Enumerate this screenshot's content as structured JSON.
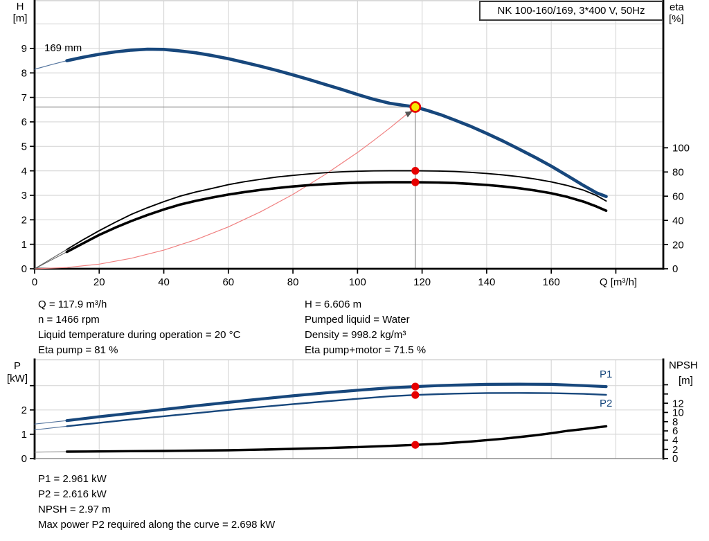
{
  "header": {
    "title": "NK 100-160/169, 3*400 V, 50Hz"
  },
  "top_chart": {
    "left_axis": {
      "name": "H",
      "unit": "[m]"
    },
    "right_axis": {
      "name": "eta",
      "unit": "[%]"
    },
    "impeller_label": "169 mm"
  },
  "bottom_chart": {
    "left_axis": {
      "name": "P",
      "unit": "[kW]"
    },
    "right_axis": {
      "name": "NPSH",
      "unit": "[m]"
    },
    "p1_label": "P1",
    "p2_label": "P2"
  },
  "info_top": {
    "left": [
      "Q = 117.9 m³/h",
      "n = 1466 rpm",
      "Liquid temperature during operation = 20 °C",
      "Eta pump = 81 %"
    ],
    "right": [
      "H = 6.606 m",
      "Pumped liquid = Water",
      "Density = 998.2 kg/m³",
      "Eta pump+motor = 71.5 %"
    ]
  },
  "info_bottom": [
    "P1 = 2.961 kW",
    "P2 = 2.616 kW",
    "NPSH = 2.97 m",
    "Max power P2 required along the curve = 2.698 kW"
  ],
  "colors": {
    "curve_blue": "#17477c",
    "thin_blue": "#53749e",
    "curve_black": "#000000",
    "thin_gray": "#666666",
    "marker_red": "#e60000",
    "duty_yellow": "#f6e700",
    "system_curve_red": "#f08080",
    "crosshair_gray": "#8a8a8a",
    "grid": "#d8d8d8",
    "border_gray": "#c4c4c4"
  },
  "chart_data": [
    {
      "type": "line",
      "title": "NK 100-160/169, 3*400 V, 50Hz",
      "xlabel": "Q [m³/h]",
      "xlim": [
        0,
        194.7
      ],
      "x_ticks": [
        0,
        20,
        40,
        60,
        80,
        100,
        120,
        140,
        160,
        180
      ],
      "x_tick_labels": [
        "0",
        "20",
        "40",
        "60",
        "80",
        "100",
        "120",
        "140",
        "160"
      ],
      "left_axis": {
        "label": "H [m]",
        "lim": [
          0,
          10.95
        ],
        "ticks": [
          0,
          1,
          2,
          3,
          4,
          5,
          6,
          7,
          8,
          9
        ],
        "gridlines": [
          1,
          2,
          3,
          4,
          5,
          6,
          7,
          8,
          9,
          10
        ]
      },
      "right_axis": {
        "label": "eta [%]",
        "lim": [
          0,
          221.6
        ],
        "ticks": [
          0,
          20,
          40,
          60,
          80,
          100
        ],
        "extra_ticks": []
      },
      "series": [
        {
          "name": "System curve",
          "axis": "left",
          "color": "#f08080",
          "width": 1.2,
          "points": [
            [
              0,
              0
            ],
            [
              10,
              0.05
            ],
            [
              20,
              0.19
            ],
            [
              30,
              0.43
            ],
            [
              40,
              0.76
            ],
            [
              50,
              1.19
            ],
            [
              60,
              1.71
            ],
            [
              70,
              2.33
            ],
            [
              80,
              3.04
            ],
            [
              90,
              3.85
            ],
            [
              100,
              4.75
            ],
            [
              105,
              5.24
            ],
            [
              110,
              5.75
            ],
            [
              114,
              6.18
            ],
            [
              117.9,
              6.61
            ]
          ]
        },
        {
          "name": "Eta pump",
          "axis": "right",
          "color": "#000000",
          "width": 1.9,
          "thin_until": 11,
          "thin_color": "#666666",
          "thin_width": 1.1,
          "points": [
            [
              0,
              0
            ],
            [
              5,
              8
            ],
            [
              10,
              16
            ],
            [
              15,
              24
            ],
            [
              20,
              31.5
            ],
            [
              25,
              38.5
            ],
            [
              30,
              45
            ],
            [
              35,
              50.5
            ],
            [
              40,
              55.5
            ],
            [
              45,
              60
            ],
            [
              50,
              63.5
            ],
            [
              55,
              66.5
            ],
            [
              60,
              69.5
            ],
            [
              65,
              72
            ],
            [
              70,
              74
            ],
            [
              75,
              75.8
            ],
            [
              80,
              77.2
            ],
            [
              85,
              78.4
            ],
            [
              90,
              79.4
            ],
            [
              95,
              80.1
            ],
            [
              100,
              80.6
            ],
            [
              105,
              80.9
            ],
            [
              110,
              81
            ],
            [
              117.9,
              81
            ],
            [
              125,
              80.8
            ],
            [
              130,
              80.4
            ],
            [
              135,
              79.7
            ],
            [
              140,
              78.8
            ],
            [
              145,
              77.6
            ],
            [
              150,
              76.1
            ],
            [
              155,
              74.2
            ],
            [
              160,
              71.8
            ],
            [
              165,
              68.8
            ],
            [
              170,
              65
            ],
            [
              174,
              60.5
            ],
            [
              177,
              56
            ]
          ]
        },
        {
          "name": "Eta pump+motor",
          "axis": "right",
          "color": "#000000",
          "width": 3.6,
          "thin_until": 11,
          "thin_color": "#666666",
          "thin_width": 1.1,
          "points": [
            [
              0,
              0
            ],
            [
              5,
              7
            ],
            [
              10,
              14
            ],
            [
              15,
              21
            ],
            [
              20,
              28
            ],
            [
              25,
              34
            ],
            [
              30,
              39.5
            ],
            [
              35,
              44.5
            ],
            [
              40,
              49
            ],
            [
              45,
              53
            ],
            [
              50,
              56.2
            ],
            [
              55,
              58.9
            ],
            [
              60,
              61.3
            ],
            [
              65,
              63.4
            ],
            [
              70,
              65.2
            ],
            [
              75,
              66.7
            ],
            [
              80,
              68
            ],
            [
              85,
              69.1
            ],
            [
              90,
              70
            ],
            [
              95,
              70.6
            ],
            [
              100,
              71.1
            ],
            [
              105,
              71.4
            ],
            [
              110,
              71.5
            ],
            [
              117.9,
              71.5
            ],
            [
              125,
              71.3
            ],
            [
              130,
              70.9
            ],
            [
              135,
              70.2
            ],
            [
              140,
              69.3
            ],
            [
              145,
              68.1
            ],
            [
              150,
              66.6
            ],
            [
              155,
              64.7
            ],
            [
              160,
              62.4
            ],
            [
              165,
              59.4
            ],
            [
              170,
              55.5
            ],
            [
              174,
              51.5
            ],
            [
              177,
              48
            ]
          ]
        },
        {
          "name": "Head 169 mm",
          "axis": "left",
          "color": "#17477c",
          "width": 4.6,
          "thin_until": 11,
          "thin_color": "#53749e",
          "thin_width": 1.2,
          "points": [
            [
              0,
              8.15
            ],
            [
              5,
              8.33
            ],
            [
              10,
              8.5
            ],
            [
              15,
              8.64
            ],
            [
              20,
              8.76
            ],
            [
              25,
              8.86
            ],
            [
              30,
              8.93
            ],
            [
              35,
              8.97
            ],
            [
              40,
              8.96
            ],
            [
              45,
              8.9
            ],
            [
              50,
              8.82
            ],
            [
              55,
              8.71
            ],
            [
              60,
              8.58
            ],
            [
              65,
              8.43
            ],
            [
              70,
              8.27
            ],
            [
              75,
              8.1
            ],
            [
              80,
              7.92
            ],
            [
              85,
              7.73
            ],
            [
              90,
              7.53
            ],
            [
              95,
              7.33
            ],
            [
              100,
              7.12
            ],
            [
              105,
              6.92
            ],
            [
              110,
              6.76
            ],
            [
              114,
              6.68
            ],
            [
              117.9,
              6.61
            ],
            [
              122,
              6.45
            ],
            [
              126,
              6.28
            ],
            [
              130,
              6.08
            ],
            [
              135,
              5.82
            ],
            [
              140,
              5.53
            ],
            [
              145,
              5.22
            ],
            [
              150,
              4.89
            ],
            [
              155,
              4.55
            ],
            [
              160,
              4.19
            ],
            [
              165,
              3.8
            ],
            [
              170,
              3.4
            ],
            [
              174,
              3.1
            ],
            [
              177,
              2.95
            ]
          ]
        }
      ],
      "duty_point": {
        "Q": 117.9,
        "H": 6.606
      },
      "marker_points": [
        {
          "series": "Eta pump",
          "axis": "right",
          "Q": 117.9,
          "value": 81
        },
        {
          "series": "Eta pump+motor",
          "axis": "right",
          "Q": 117.9,
          "value": 71.5
        }
      ]
    },
    {
      "type": "line",
      "xlabel": "",
      "xlim": [
        0,
        194.7
      ],
      "x_ticks": [
        0,
        20,
        40,
        60,
        80,
        100,
        120,
        140,
        160,
        180
      ],
      "x_tick_labels": [],
      "left_axis": {
        "label": "P [kW]",
        "lim": [
          0,
          4.06
        ],
        "ticks": [
          0,
          1,
          2
        ],
        "extra_ticks": [
          3
        ],
        "gridlines": [
          1,
          2,
          3
        ]
      },
      "right_axis": {
        "label": "NPSH [m]",
        "lim": [
          0,
          21.4
        ],
        "ticks": [
          0,
          2,
          4,
          6,
          8,
          10,
          12
        ],
        "extra_ticks": [
          14,
          16
        ]
      },
      "series": [
        {
          "name": "NPSH",
          "axis": "right",
          "color": "#000000",
          "width": 3.4,
          "thin_until": 11,
          "thin_color": "#888888",
          "thin_width": 1.1,
          "points": [
            [
              0,
              1.4
            ],
            [
              10,
              1.5
            ],
            [
              20,
              1.55
            ],
            [
              30,
              1.6
            ],
            [
              40,
              1.65
            ],
            [
              50,
              1.72
            ],
            [
              60,
              1.8
            ],
            [
              70,
              1.93
            ],
            [
              80,
              2.1
            ],
            [
              90,
              2.28
            ],
            [
              100,
              2.5
            ],
            [
              110,
              2.75
            ],
            [
              117.9,
              2.97
            ],
            [
              125,
              3.2
            ],
            [
              130,
              3.45
            ],
            [
              135,
              3.7
            ],
            [
              140,
              4
            ],
            [
              145,
              4.3
            ],
            [
              150,
              4.65
            ],
            [
              155,
              5.05
            ],
            [
              160,
              5.5
            ],
            [
              165,
              6
            ],
            [
              170,
              6.4
            ],
            [
              174,
              6.75
            ],
            [
              177,
              7
            ]
          ]
        },
        {
          "name": "P2",
          "axis": "left",
          "color": "#17477c",
          "width": 2.4,
          "thin_until": 11,
          "thin_color": "#53749e",
          "thin_width": 1.1,
          "points": [
            [
              0,
              1.18
            ],
            [
              10,
              1.33
            ],
            [
              20,
              1.47
            ],
            [
              30,
              1.61
            ],
            [
              40,
              1.74
            ],
            [
              50,
              1.87
            ],
            [
              60,
              2
            ],
            [
              70,
              2.12
            ],
            [
              80,
              2.24
            ],
            [
              90,
              2.35
            ],
            [
              100,
              2.46
            ],
            [
              110,
              2.56
            ],
            [
              117.9,
              2.616
            ],
            [
              125,
              2.65
            ],
            [
              130,
              2.67
            ],
            [
              140,
              2.694
            ],
            [
              150,
              2.698
            ],
            [
              160,
              2.69
            ],
            [
              170,
              2.66
            ],
            [
              177,
              2.62
            ]
          ]
        },
        {
          "name": "P1",
          "axis": "left",
          "color": "#17477c",
          "width": 4.2,
          "thin_until": 11,
          "thin_color": "#53749e",
          "thin_width": 1.1,
          "points": [
            [
              0,
              1.42
            ],
            [
              10,
              1.56
            ],
            [
              20,
              1.72
            ],
            [
              30,
              1.87
            ],
            [
              40,
              2.02
            ],
            [
              50,
              2.17
            ],
            [
              60,
              2.31
            ],
            [
              70,
              2.45
            ],
            [
              80,
              2.58
            ],
            [
              90,
              2.7
            ],
            [
              100,
              2.81
            ],
            [
              110,
              2.91
            ],
            [
              117.9,
              2.961
            ],
            [
              125,
              3
            ],
            [
              130,
              3.02
            ],
            [
              140,
              3.05
            ],
            [
              150,
              3.06
            ],
            [
              160,
              3.05
            ],
            [
              170,
              3
            ],
            [
              177,
              2.96
            ]
          ]
        }
      ],
      "marker_points": [
        {
          "series": "P1",
          "axis": "left",
          "Q": 117.9,
          "value": 2.961
        },
        {
          "series": "P2",
          "axis": "left",
          "Q": 117.9,
          "value": 2.616
        },
        {
          "series": "NPSH",
          "axis": "right",
          "Q": 117.9,
          "value": 2.97
        }
      ]
    }
  ]
}
